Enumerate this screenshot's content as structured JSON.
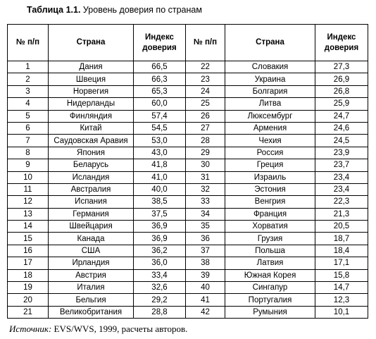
{
  "caption": {
    "label": "Таблица 1.1.",
    "text": "Уровень доверия по странам"
  },
  "table": {
    "headers": [
      "№ п/п",
      "Страна",
      "Индекс доверия",
      "№ п/п",
      "Страна",
      "Индекс доверия"
    ],
    "rows": [
      [
        "1",
        "Дания",
        "66,5",
        "22",
        "Словакия",
        "27,3"
      ],
      [
        "2",
        "Швеция",
        "66,3",
        "23",
        "Украина",
        "26,9"
      ],
      [
        "3",
        "Норвегия",
        "65,3",
        "24",
        "Болгария",
        "26,8"
      ],
      [
        "4",
        "Нидерланды",
        "60,0",
        "25",
        "Литва",
        "25,9"
      ],
      [
        "5",
        "Финляндия",
        "57,4",
        "26",
        "Люксембург",
        "24,7"
      ],
      [
        "6",
        "Китай",
        "54,5",
        "27",
        "Армения",
        "24,6"
      ],
      [
        "7",
        "Саудовская Аравия",
        "53,0",
        "28",
        "Чехия",
        "24,5"
      ],
      [
        "8",
        "Япония",
        "43,0",
        "29",
        "Россия",
        "23,9"
      ],
      [
        "9",
        "Беларусь",
        "41,8",
        "30",
        "Греция",
        "23,7"
      ],
      [
        "10",
        "Исландия",
        "41,0",
        "31",
        "Израиль",
        "23,4"
      ],
      [
        "11",
        "Австралия",
        "40,0",
        "32",
        "Эстония",
        "23,4"
      ],
      [
        "12",
        "Испания",
        "38,5",
        "33",
        "Венгрия",
        "22,3"
      ],
      [
        "13",
        "Германия",
        "37,5",
        "34",
        "Франция",
        "21,3"
      ],
      [
        "14",
        "Швейцария",
        "36,9",
        "35",
        "Хорватия",
        "20,5"
      ],
      [
        "15",
        "Канада",
        "36,9",
        "36",
        "Грузия",
        "18,7"
      ],
      [
        "16",
        "США",
        "36,2",
        "37",
        "Польша",
        "18,4"
      ],
      [
        "17",
        "Ирландия",
        "36,0",
        "38",
        "Латвия",
        "17,1"
      ],
      [
        "18",
        "Австрия",
        "33,4",
        "39",
        "Южная Корея",
        "15,8"
      ],
      [
        "19",
        "Италия",
        "32,6",
        "40",
        "Сингапур",
        "14,7"
      ],
      [
        "20",
        "Бельгия",
        "29,2",
        "41",
        "Португалия",
        "12,3"
      ],
      [
        "21",
        "Великобритания",
        "28,8",
        "42",
        "Румыния",
        "10,1"
      ]
    ]
  },
  "source": {
    "label": "Источник:",
    "text": " EVS/WVS, 1999, расчеты авторов."
  }
}
